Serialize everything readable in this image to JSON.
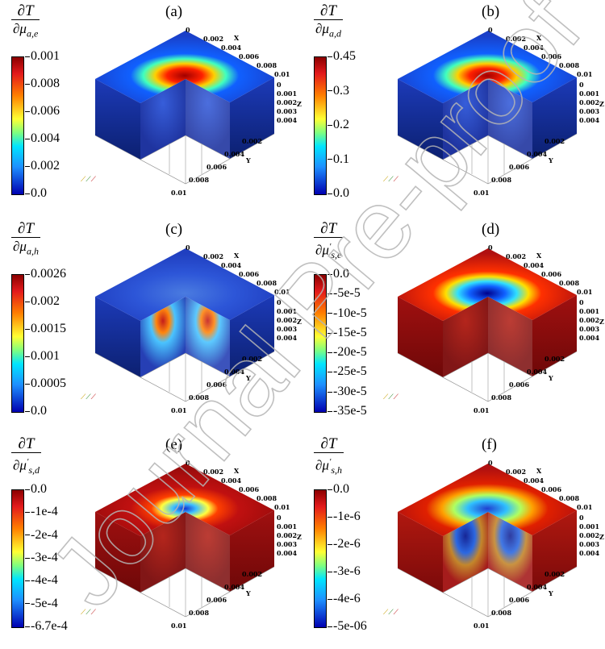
{
  "panels": [
    {
      "id": "a",
      "label": "(a)",
      "num": "∂T",
      "den": "∂μa,e",
      "ticks": [
        "0.001",
        "0.008",
        "0.006",
        "0.004",
        "0.002",
        "0.0"
      ],
      "style": "center-hot"
    },
    {
      "id": "b",
      "label": "(b)",
      "num": "∂T",
      "den": "∂μa,d",
      "ticks": [
        "0.45",
        "0.3",
        "0.2",
        "0.1",
        "0.0"
      ],
      "style": "center-hot"
    },
    {
      "id": "c",
      "label": "(c)",
      "num": "∂T",
      "den": "∂μa,h",
      "ticks": [
        "0.0026",
        "0.002",
        "0.0015",
        "0.001",
        "0.0005",
        "0.0"
      ],
      "style": "deep-hot"
    },
    {
      "id": "d",
      "label": "(d)",
      "num": "∂T",
      "den": "∂μ's,e",
      "ticks": [
        "0.0",
        "-5e-5",
        "-10e-5",
        "-15e-5",
        "-20e-5",
        "-25e-5",
        "-30e-5",
        "-35e-5"
      ],
      "style": "center-cold"
    },
    {
      "id": "e",
      "label": "(e)",
      "num": "∂T",
      "den": "∂μ's,d",
      "ticks": [
        "0.0",
        "-1e-4",
        "-2e-4",
        "-3e-4",
        "-4e-4",
        "-5e-4",
        "-6.7e-4"
      ],
      "style": "center-cold-ring"
    },
    {
      "id": "f",
      "label": "(f)",
      "num": "∂T",
      "den": "∂μ's,h",
      "ticks": [
        "0.0",
        "-1e-6",
        "-2e-6",
        "-3e-6",
        "-4e-6",
        "-5e-06"
      ],
      "style": "deep-cold"
    }
  ],
  "axes": {
    "x_label": "X",
    "y_label": "Y",
    "z_label": "Z",
    "x_ticks": [
      "0",
      "0.002",
      "0.004",
      "0.006",
      "0.008",
      "0.01"
    ],
    "y_ticks": [
      "0.002",
      "0.004",
      "0.006",
      "0.008",
      "0.01"
    ],
    "z_ticks": [
      "0",
      "0.001",
      "0.002",
      "0.003",
      "0.004"
    ]
  },
  "watermark": "Journal Pre-proof"
}
